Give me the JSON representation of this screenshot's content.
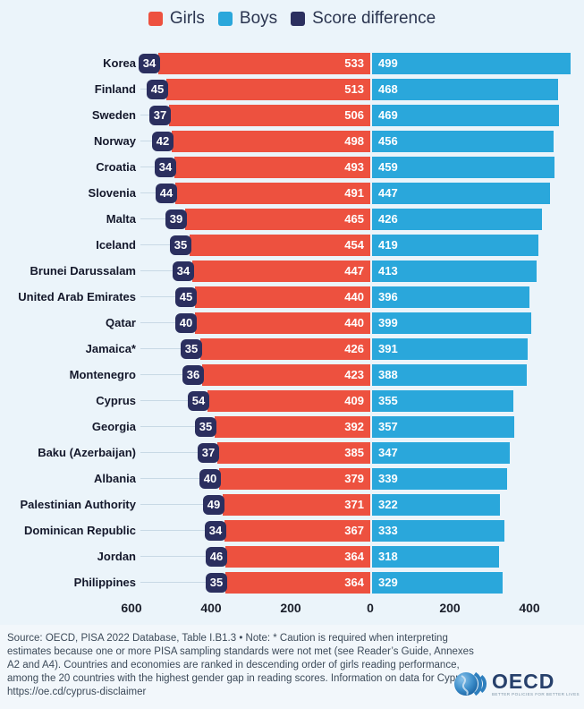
{
  "legend": {
    "items": [
      {
        "label": "Girls",
        "color": "#ED513F"
      },
      {
        "label": "Boys",
        "color": "#2AA7DB"
      },
      {
        "label": "Score difference",
        "color": "#2B2F5F"
      }
    ]
  },
  "chart_data": {
    "type": "bar",
    "variant": "horizontal-diverging",
    "title": "",
    "legend_position": "top",
    "grid": false,
    "series": [
      {
        "name": "Girls",
        "color": "#ED513F",
        "side": "left"
      },
      {
        "name": "Boys",
        "color": "#2AA7DB",
        "side": "right"
      },
      {
        "name": "Score difference",
        "color": "#2B2F5F",
        "display": "badge"
      }
    ],
    "rows": [
      {
        "country": "Korea",
        "score_difference": 34,
        "girls": 533,
        "boys": 499
      },
      {
        "country": "Finland",
        "score_difference": 45,
        "girls": 513,
        "boys": 468
      },
      {
        "country": "Sweden",
        "score_difference": 37,
        "girls": 506,
        "boys": 469
      },
      {
        "country": "Norway",
        "score_difference": 42,
        "girls": 498,
        "boys": 456
      },
      {
        "country": "Croatia",
        "score_difference": 34,
        "girls": 493,
        "boys": 459
      },
      {
        "country": "Slovenia",
        "score_difference": 44,
        "girls": 491,
        "boys": 447
      },
      {
        "country": "Malta",
        "score_difference": 39,
        "girls": 465,
        "boys": 426
      },
      {
        "country": "Iceland",
        "score_difference": 35,
        "girls": 454,
        "boys": 419
      },
      {
        "country": "Brunei Darussalam",
        "score_difference": 34,
        "girls": 447,
        "boys": 413
      },
      {
        "country": "United Arab Emirates",
        "score_difference": 45,
        "girls": 440,
        "boys": 396
      },
      {
        "country": "Qatar",
        "score_difference": 40,
        "girls": 440,
        "boys": 399
      },
      {
        "country": "Jamaica*",
        "score_difference": 35,
        "girls": 426,
        "boys": 391
      },
      {
        "country": "Montenegro",
        "score_difference": 36,
        "girls": 423,
        "boys": 388
      },
      {
        "country": "Cyprus",
        "score_difference": 54,
        "girls": 409,
        "boys": 355
      },
      {
        "country": "Georgia",
        "score_difference": 35,
        "girls": 392,
        "boys": 357
      },
      {
        "country": "Baku (Azerbaijan)",
        "score_difference": 37,
        "girls": 385,
        "boys": 347
      },
      {
        "country": "Albania",
        "score_difference": 40,
        "girls": 379,
        "boys": 339
      },
      {
        "country": "Palestinian Authority",
        "score_difference": 49,
        "girls": 371,
        "boys": 322
      },
      {
        "country": "Dominican Republic",
        "score_difference": 34,
        "girls": 367,
        "boys": 333
      },
      {
        "country": "Jordan",
        "score_difference": 46,
        "girls": 364,
        "boys": 318
      },
      {
        "country": "Philippines",
        "score_difference": 35,
        "girls": 364,
        "boys": 329
      }
    ],
    "x_axis": {
      "tick_labels": [
        "600",
        "400",
        "200",
        "0",
        "200",
        "400"
      ],
      "tick_values": [
        -600,
        -400,
        -200,
        0,
        200,
        400
      ],
      "range": [
        -650,
        480
      ],
      "note": "Girls scores plotted leftwards from zero, boys scores rightwards"
    }
  },
  "footer": {
    "source_text": "Source: OECD, PISA 2022 Database, Table I.B1.3 • Note: * Caution is required when interpreting estimates because one or more PISA sampling standards were not met (see Reader’s Guide, Annexes A2 and A4). Countries and economies are ranked in descending order of girls reading performance, among the 20 countries with the highest gender gap in reading scores. Information on data for Cyprus:",
    "url": "https://oe.cd/cyprus-disclaimer",
    "logo_text": "OECD",
    "logo_tagline": "BETTER POLICIES FOR BETTER LIVES"
  }
}
